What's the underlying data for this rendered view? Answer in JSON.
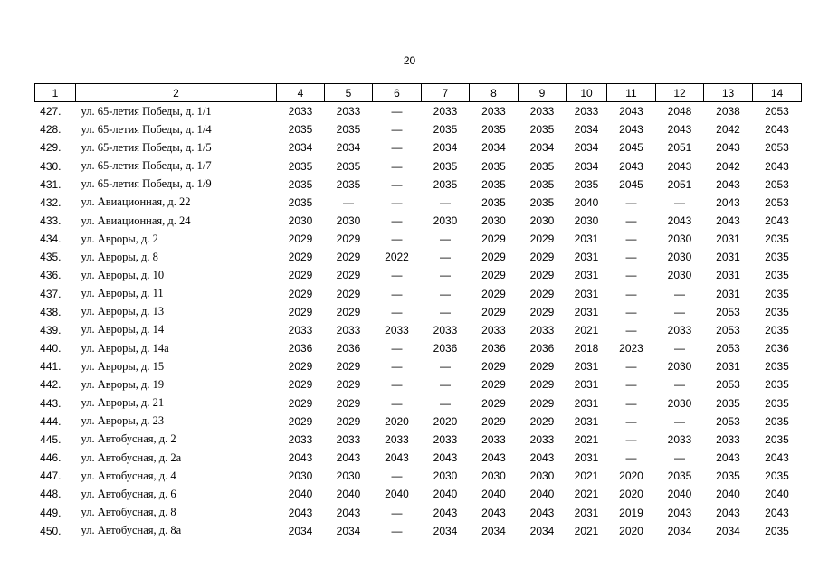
{
  "page_number": "20",
  "table": {
    "header": [
      "1",
      "2",
      "4",
      "5",
      "6",
      "7",
      "8",
      "9",
      "10",
      "11",
      "12",
      "13",
      "14"
    ],
    "rows": [
      [
        "427.",
        "ул. 65-летия Победы, д. 1/1",
        "2033",
        "2033",
        "—",
        "2033",
        "2033",
        "2033",
        "2033",
        "2043",
        "2048",
        "2038",
        "2053"
      ],
      [
        "428.",
        "ул. 65-летия Победы, д. 1/4",
        "2035",
        "2035",
        "—",
        "2035",
        "2035",
        "2035",
        "2034",
        "2043",
        "2043",
        "2042",
        "2043"
      ],
      [
        "429.",
        "ул. 65-летия Победы, д. 1/5",
        "2034",
        "2034",
        "—",
        "2034",
        "2034",
        "2034",
        "2034",
        "2045",
        "2051",
        "2043",
        "2053"
      ],
      [
        "430.",
        "ул. 65-летия Победы, д. 1/7",
        "2035",
        "2035",
        "—",
        "2035",
        "2035",
        "2035",
        "2034",
        "2043",
        "2043",
        "2042",
        "2043"
      ],
      [
        "431.",
        "ул. 65-летия Победы, д. 1/9",
        "2035",
        "2035",
        "—",
        "2035",
        "2035",
        "2035",
        "2035",
        "2045",
        "2051",
        "2043",
        "2053"
      ],
      [
        "432.",
        "ул. Авиационная, д. 22",
        "2035",
        "—",
        "—",
        "—",
        "2035",
        "2035",
        "2040",
        "—",
        "—",
        "2043",
        "2053"
      ],
      [
        "433.",
        "ул. Авиационная, д. 24",
        "2030",
        "2030",
        "—",
        "2030",
        "2030",
        "2030",
        "2030",
        "—",
        "2043",
        "2043",
        "2043"
      ],
      [
        "434.",
        "ул. Авроры, д. 2",
        "2029",
        "2029",
        "—",
        "—",
        "2029",
        "2029",
        "2031",
        "—",
        "2030",
        "2031",
        "2035"
      ],
      [
        "435.",
        "ул. Авроры, д. 8",
        "2029",
        "2029",
        "2022",
        "—",
        "2029",
        "2029",
        "2031",
        "—",
        "2030",
        "2031",
        "2035"
      ],
      [
        "436.",
        "ул. Авроры, д. 10",
        "2029",
        "2029",
        "—",
        "—",
        "2029",
        "2029",
        "2031",
        "—",
        "2030",
        "2031",
        "2035"
      ],
      [
        "437.",
        "ул. Авроры, д. 11",
        "2029",
        "2029",
        "—",
        "—",
        "2029",
        "2029",
        "2031",
        "—",
        "—",
        "2031",
        "2035"
      ],
      [
        "438.",
        "ул. Авроры, д. 13",
        "2029",
        "2029",
        "—",
        "—",
        "2029",
        "2029",
        "2031",
        "—",
        "—",
        "2053",
        "2035"
      ],
      [
        "439.",
        "ул. Авроры, д. 14",
        "2033",
        "2033",
        "2033",
        "2033",
        "2033",
        "2033",
        "2021",
        "—",
        "2033",
        "2053",
        "2035"
      ],
      [
        "440.",
        "ул. Авроры, д. 14а",
        "2036",
        "2036",
        "—",
        "2036",
        "2036",
        "2036",
        "2018",
        "2023",
        "—",
        "2053",
        "2036"
      ],
      [
        "441.",
        "ул. Авроры, д. 15",
        "2029",
        "2029",
        "—",
        "—",
        "2029",
        "2029",
        "2031",
        "—",
        "2030",
        "2031",
        "2035"
      ],
      [
        "442.",
        "ул. Авроры, д. 19",
        "2029",
        "2029",
        "—",
        "—",
        "2029",
        "2029",
        "2031",
        "—",
        "—",
        "2053",
        "2035"
      ],
      [
        "443.",
        "ул. Авроры, д. 21",
        "2029",
        "2029",
        "—",
        "—",
        "2029",
        "2029",
        "2031",
        "—",
        "2030",
        "2035",
        "2035"
      ],
      [
        "444.",
        "ул. Авроры, д. 23",
        "2029",
        "2029",
        "2020",
        "2020",
        "2029",
        "2029",
        "2031",
        "—",
        "—",
        "2053",
        "2035"
      ],
      [
        "445.",
        "ул. Автобусная, д. 2",
        "2033",
        "2033",
        "2033",
        "2033",
        "2033",
        "2033",
        "2021",
        "—",
        "2033",
        "2033",
        "2035"
      ],
      [
        "446.",
        "ул. Автобусная, д. 2а",
        "2043",
        "2043",
        "2043",
        "2043",
        "2043",
        "2043",
        "2031",
        "—",
        "—",
        "2043",
        "2043"
      ],
      [
        "447.",
        "ул. Автобусная, д. 4",
        "2030",
        "2030",
        "—",
        "2030",
        "2030",
        "2030",
        "2021",
        "2020",
        "2035",
        "2035",
        "2035"
      ],
      [
        "448.",
        "ул. Автобусная, д. 6",
        "2040",
        "2040",
        "2040",
        "2040",
        "2040",
        "2040",
        "2021",
        "2020",
        "2040",
        "2040",
        "2040"
      ],
      [
        "449.",
        "ул. Автобусная, д. 8",
        "2043",
        "2043",
        "—",
        "2043",
        "2043",
        "2043",
        "2031",
        "2019",
        "2043",
        "2043",
        "2043"
      ],
      [
        "450.",
        "ул. Автобусная, д. 8а",
        "2034",
        "2034",
        "—",
        "2034",
        "2034",
        "2034",
        "2021",
        "2020",
        "2034",
        "2034",
        "2035"
      ]
    ]
  }
}
